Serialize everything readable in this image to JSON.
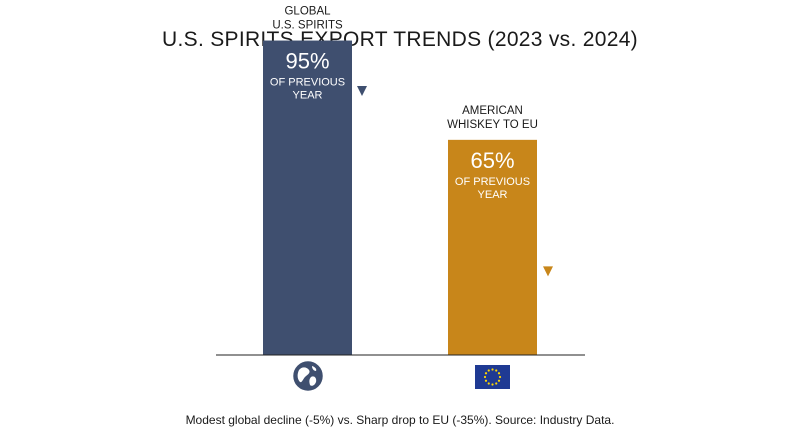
{
  "title": "U.S. SPIRITS EXPORT TRENDS (2023 vs. 2024)",
  "caption": "Modest global decline (-5%) vs. Sharp drop to EU (-35%). Source: Industry Data.",
  "chart_data": {
    "type": "bar",
    "ylim": [
      0,
      100
    ],
    "grid": false,
    "legend": "none",
    "categories": [
      "GLOBAL U.S. SPIRITS",
      "AMERICAN WHISKEY TO EU"
    ],
    "values": [
      95,
      65
    ],
    "bars": [
      {
        "label_lines": [
          "GLOBAL",
          "U.S. SPIRITS"
        ],
        "value": 95,
        "value_text": "95%",
        "sub_lines": [
          "OF PREVIOUS",
          "YEAR"
        ],
        "color": "#3f4f6f",
        "icon": "globe-icon"
      },
      {
        "label_lines": [
          "AMERICAN",
          "WHISKEY TO EU"
        ],
        "value": 65,
        "value_text": "65%",
        "sub_lines": [
          "OF PREVIOUS",
          "YEAR"
        ],
        "color": "#c8861a",
        "icon": "eu-flag-icon"
      }
    ]
  }
}
